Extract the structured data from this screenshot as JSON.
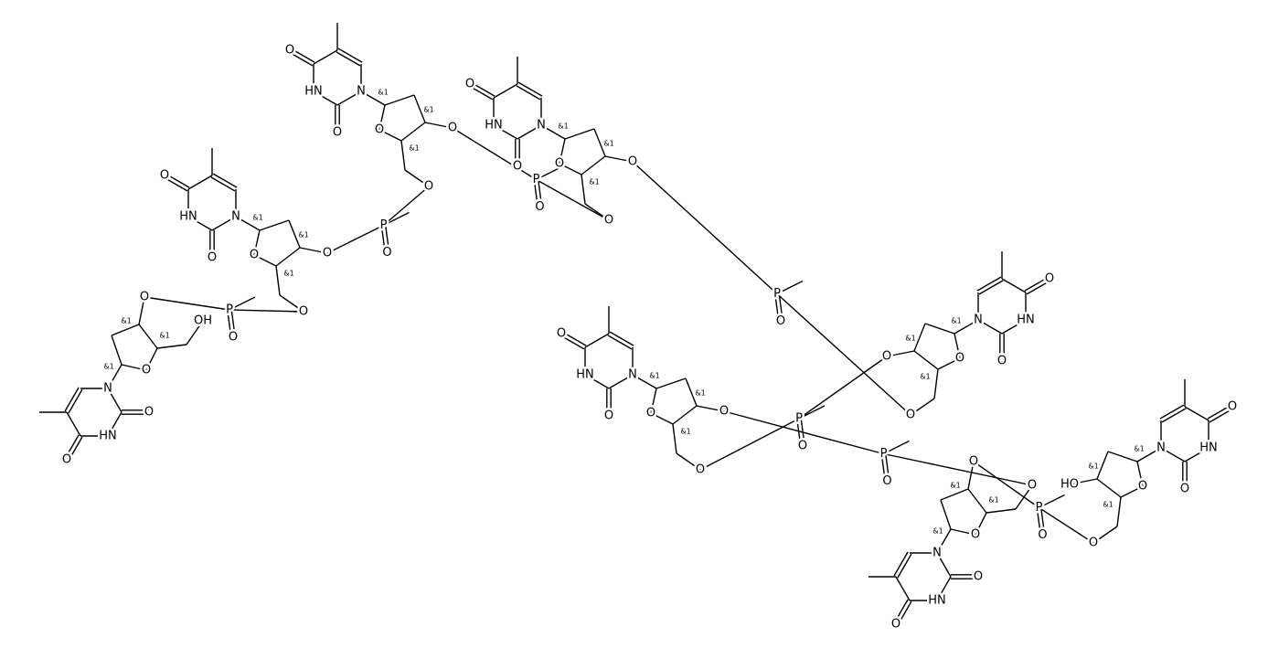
{
  "units": [
    {
      "labels": [
        "O",
        "HN",
        "O",
        "N",
        "O",
        "&1",
        "&1",
        "&1",
        "OH",
        "O"
      ]
    },
    {
      "labels": [
        "O",
        "HN",
        "O",
        "N",
        "O",
        "&1",
        "&1",
        "&1",
        "O",
        "O"
      ]
    },
    {
      "labels": [
        "O",
        "HN",
        "O",
        "N",
        "O",
        "&1",
        "&1",
        "&1",
        "O",
        "O"
      ]
    },
    {
      "labels": [
        "O",
        "HN",
        "O",
        "N",
        "O",
        "&1",
        "&1",
        "&1",
        "O",
        "O"
      ]
    },
    {
      "labels": [
        "O",
        "HN",
        "O",
        "N",
        "O",
        "&1",
        "&1",
        "&1",
        "O",
        "O"
      ]
    },
    {
      "labels": [
        "O",
        "HN",
        "O",
        "N",
        "O",
        "&1",
        "&1",
        "&1",
        "O",
        "O"
      ]
    },
    {
      "labels": [
        "O",
        "HN",
        "O",
        "N",
        "O",
        "&1",
        "&1",
        "&1",
        "O",
        "O"
      ]
    },
    {
      "labels": [
        "O",
        "HN",
        "O",
        "N",
        "O",
        "&1",
        "&1",
        "&1",
        "O",
        "HO"
      ]
    }
  ],
  "linkers": [
    {
      "labels": [
        "P",
        "O"
      ]
    },
    {
      "labels": [
        "P",
        "O"
      ]
    },
    {
      "labels": [
        "P",
        "O"
      ]
    },
    {
      "labels": [
        "P",
        "O"
      ]
    },
    {
      "labels": [
        "P",
        "O"
      ]
    },
    {
      "labels": [
        "P",
        "O"
      ]
    },
    {
      "labels": [
        "P",
        "O"
      ]
    }
  ]
}
